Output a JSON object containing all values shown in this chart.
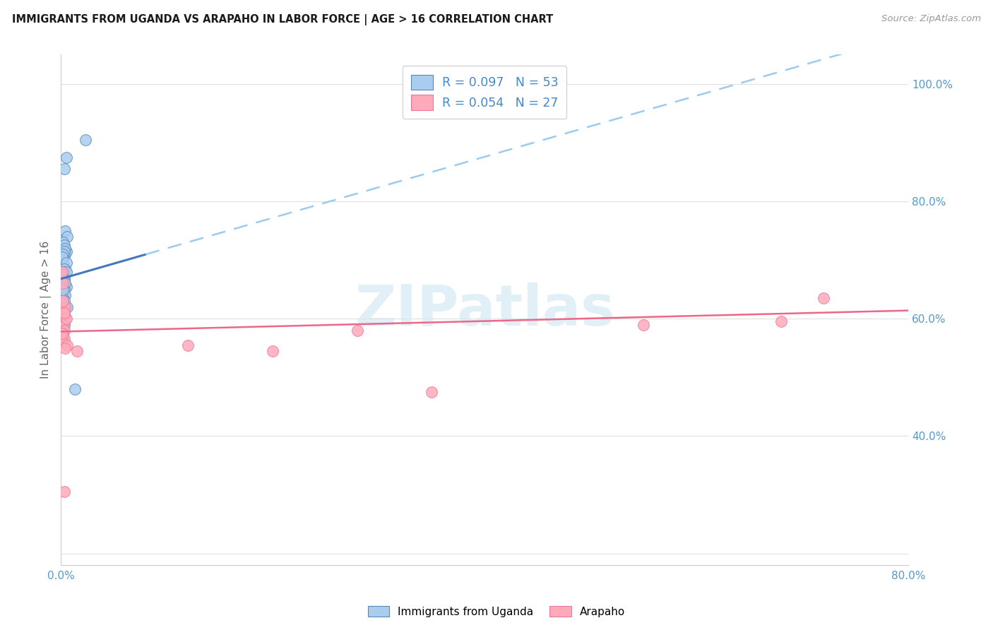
{
  "title": "IMMIGRANTS FROM UGANDA VS ARAPAHO IN LABOR FORCE | AGE > 16 CORRELATION CHART",
  "source": "Source: ZipAtlas.com",
  "ylabel": "In Labor Force | Age > 16",
  "xlim": [
    0.0,
    0.8
  ],
  "ylim": [
    0.18,
    1.05
  ],
  "ytick_pos": [
    0.2,
    0.4,
    0.6,
    0.8,
    1.0
  ],
  "ytick_labels": [
    "",
    "40.0%",
    "60.0%",
    "80.0%",
    "100.0%"
  ],
  "xtick_pos": [
    0.0,
    0.1,
    0.2,
    0.3,
    0.4,
    0.5,
    0.6,
    0.7,
    0.8
  ],
  "xtick_labels": [
    "0.0%",
    "",
    "",
    "",
    "",
    "",
    "",
    "",
    "80.0%"
  ],
  "uganda_color": "#aaccee",
  "arapaho_color": "#ffaabb",
  "uganda_edge_color": "#5588bb",
  "arapaho_edge_color": "#ee7799",
  "uganda_line_solid_color": "#4477bb",
  "uganda_line_dash_color": "#99ccee",
  "arapaho_line_color": "#ee6688",
  "watermark_text": "ZIPatlas",
  "watermark_color": "#d5eaf5",
  "background_color": "#ffffff",
  "grid_color": "#e0e0e0",
  "uganda_x": [
    0.001,
    0.023,
    0.005,
    0.003,
    0.004,
    0.006,
    0.002,
    0.003,
    0.001,
    0.004,
    0.002,
    0.001,
    0.003,
    0.005,
    0.002,
    0.004,
    0.001,
    0.003,
    0.002,
    0.001,
    0.004,
    0.003,
    0.002,
    0.001,
    0.005,
    0.003,
    0.002,
    0.004,
    0.001,
    0.003,
    0.002,
    0.005,
    0.003,
    0.001,
    0.004,
    0.002,
    0.003,
    0.001,
    0.006,
    0.002,
    0.003,
    0.001,
    0.004,
    0.002,
    0.003,
    0.005,
    0.001,
    0.002,
    0.003,
    0.004,
    0.001,
    0.002,
    0.013
  ],
  "uganda_y": [
    0.72,
    0.905,
    0.875,
    0.855,
    0.75,
    0.74,
    0.73,
    0.72,
    0.715,
    0.71,
    0.705,
    0.7,
    0.725,
    0.715,
    0.695,
    0.685,
    0.68,
    0.675,
    0.67,
    0.665,
    0.72,
    0.715,
    0.71,
    0.705,
    0.695,
    0.685,
    0.68,
    0.675,
    0.67,
    0.665,
    0.66,
    0.655,
    0.65,
    0.645,
    0.64,
    0.635,
    0.63,
    0.625,
    0.62,
    0.615,
    0.61,
    0.605,
    0.6,
    0.595,
    0.59,
    0.68,
    0.675,
    0.67,
    0.665,
    0.66,
    0.655,
    0.65,
    0.48
  ],
  "arapaho_x": [
    0.001,
    0.002,
    0.003,
    0.001,
    0.004,
    0.002,
    0.003,
    0.001,
    0.005,
    0.002,
    0.003,
    0.004,
    0.001,
    0.006,
    0.003,
    0.002,
    0.004,
    0.001,
    0.015,
    0.12,
    0.2,
    0.28,
    0.35,
    0.55,
    0.68,
    0.72,
    0.003
  ],
  "arapaho_y": [
    0.68,
    0.66,
    0.62,
    0.61,
    0.6,
    0.59,
    0.58,
    0.575,
    0.6,
    0.57,
    0.565,
    0.62,
    0.56,
    0.555,
    0.61,
    0.63,
    0.55,
    0.575,
    0.545,
    0.555,
    0.545,
    0.58,
    0.475,
    0.59,
    0.595,
    0.635,
    0.305
  ],
  "uganda_trend_x0": 0.0,
  "uganda_trend_x_solid_end": 0.08,
  "uganda_trend_x_end": 0.8,
  "uganda_trend_y0": 0.668,
  "uganda_trend_slope": 0.52,
  "arapaho_trend_y0": 0.578,
  "arapaho_trend_slope": 0.045
}
